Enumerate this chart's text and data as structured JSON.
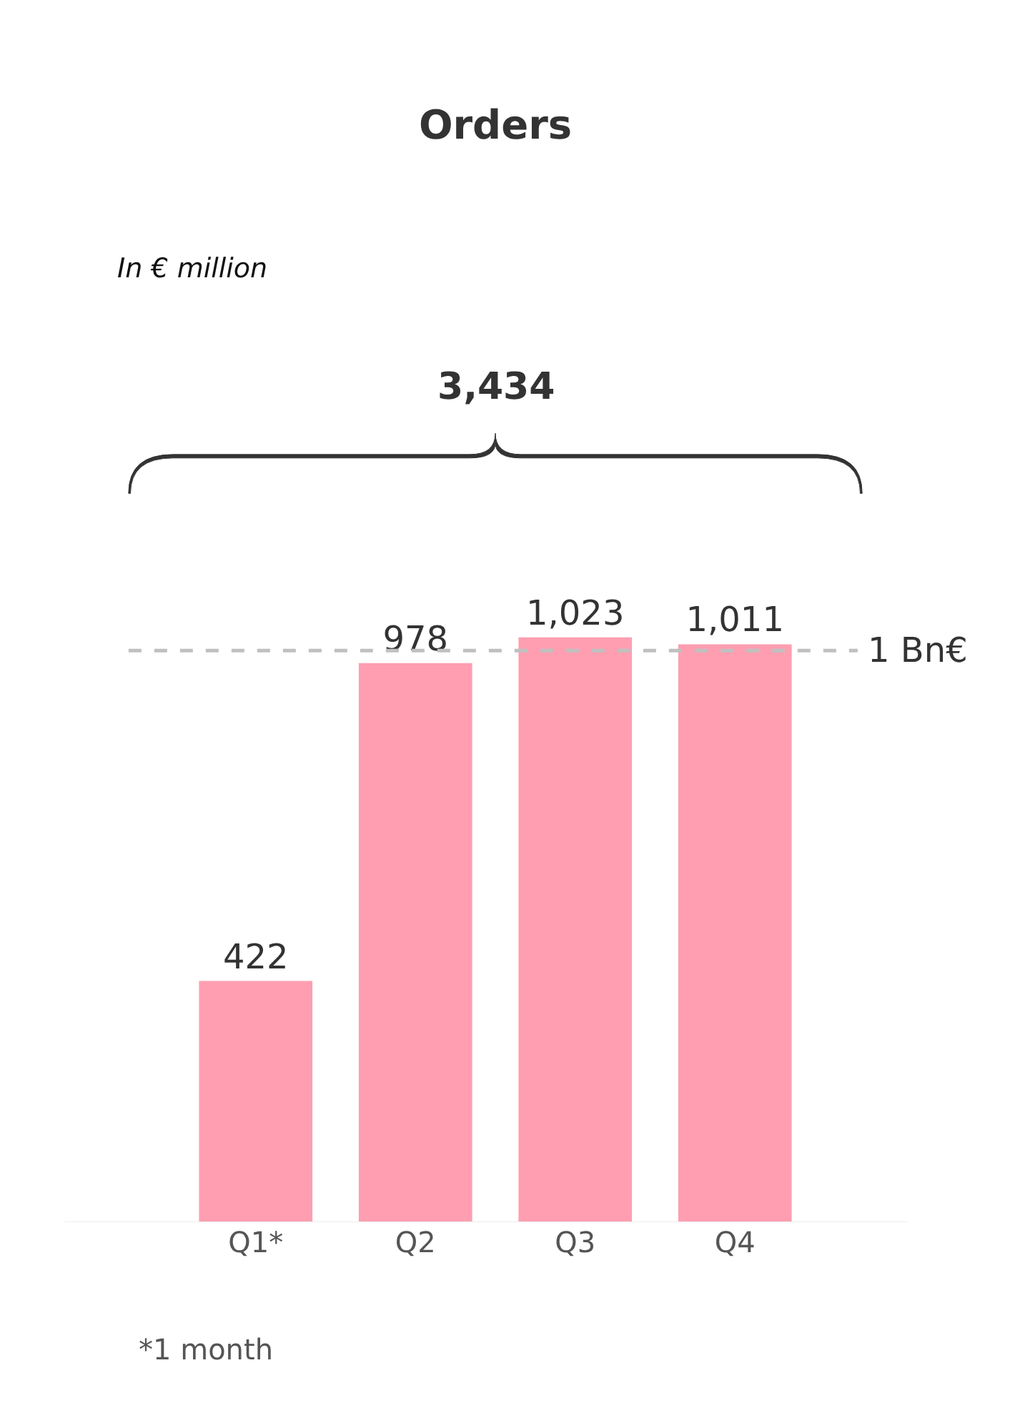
{
  "chart_data": {
    "type": "bar",
    "title": "Orders",
    "subtitle": "In € million",
    "categories": [
      "Q1*",
      "Q2",
      "Q3",
      "Q4"
    ],
    "values": [
      422,
      978,
      1023,
      1011
    ],
    "color": "#ff9eb1",
    "value_labels": [
      "422",
      "978",
      "1,023",
      "1,011"
    ],
    "ref_lines": [
      {
        "axis": "y",
        "value": 1000,
        "label": "1 Bn€",
        "color": "#c0c0c0",
        "line_style": "dashed"
      }
    ],
    "annotations": [
      "3,434",
      "*1 month"
    ]
  }
}
